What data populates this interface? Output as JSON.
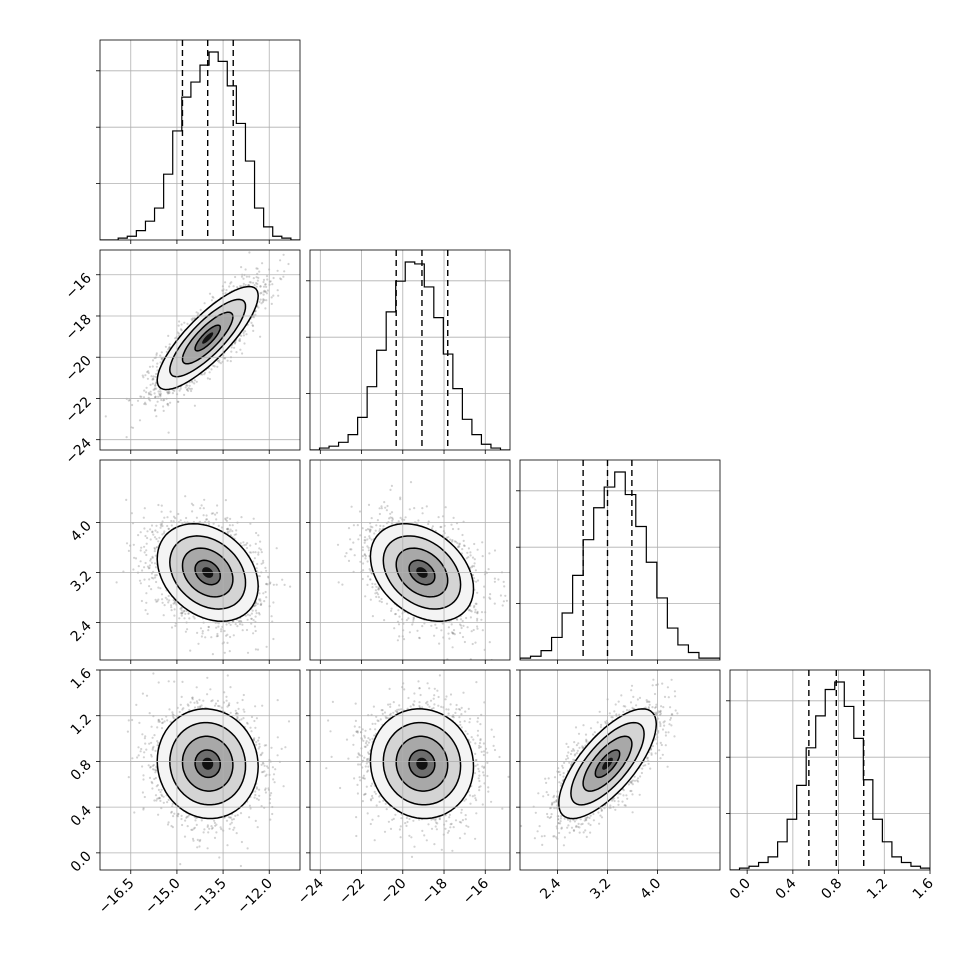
{
  "chart_data": {
    "type": "corner",
    "parameters": [
      {
        "range": [
          -17.5,
          -11.0
        ],
        "ticks": [
          -16.5,
          -15.0,
          -13.5,
          -12.0
        ],
        "tick_labels": [
          "−16.5",
          "−15.0",
          "−13.5",
          "−12.0"
        ],
        "quantiles": [
          -14.82,
          -14.0,
          -13.17
        ],
        "histogram": [
          0,
          0,
          1,
          2,
          5,
          10,
          17,
          35,
          58,
          76,
          84,
          93,
          100,
          95,
          82,
          62,
          42,
          17,
          7,
          2,
          1,
          0
        ]
      },
      {
        "range": [
          -24.5,
          -14.8
        ],
        "ticks": [
          -24,
          -22,
          -20,
          -18,
          -16
        ],
        "tick_labels": [
          "−24",
          "−22",
          "−20",
          "−18",
          "−16"
        ],
        "quantiles": [
          -20.32,
          -19.07,
          -17.82
        ],
        "histogram": [
          0,
          1,
          2,
          4,
          8,
          17,
          33,
          52,
          72,
          88,
          98,
          97,
          85,
          69,
          50,
          32,
          16,
          8,
          3,
          1,
          0
        ]
      },
      {
        "range": [
          1.8,
          5.0
        ],
        "ticks": [
          2.4,
          3.2,
          4.0
        ],
        "tick_labels": [
          "2.4",
          "3.2",
          "4.0"
        ],
        "quantiles": [
          2.81,
          3.2,
          3.59
        ],
        "histogram": [
          1,
          2,
          5,
          12,
          25,
          45,
          64,
          81,
          92,
          100,
          88,
          71,
          52,
          33,
          17,
          8,
          4,
          1,
          1
        ]
      },
      {
        "range": [
          -0.15,
          1.6
        ],
        "ticks": [
          0.0,
          0.4,
          0.8,
          1.2,
          1.6
        ],
        "tick_labels": [
          "0.0",
          "0.4",
          "0.8",
          "1.2",
          "1.6"
        ],
        "quantiles": [
          0.54,
          0.78,
          1.02
        ],
        "histogram": [
          0,
          1,
          2,
          4,
          7,
          15,
          27,
          45,
          65,
          82,
          96,
          100,
          87,
          70,
          48,
          27,
          15,
          7,
          4,
          2,
          1
        ]
      }
    ],
    "pairs": [
      {
        "row": 1,
        "col": 0,
        "mean": [
          -14.0,
          -19.07
        ],
        "sd": [
          0.82,
          1.25
        ],
        "corr": 0.82
      },
      {
        "row": 2,
        "col": 0,
        "mean": [
          -14.0,
          3.2
        ],
        "sd": [
          0.82,
          0.39
        ],
        "corr": -0.28
      },
      {
        "row": 2,
        "col": 1,
        "mean": [
          -19.07,
          3.2
        ],
        "sd": [
          1.25,
          0.39
        ],
        "corr": -0.33
      },
      {
        "row": 3,
        "col": 0,
        "mean": [
          -14.0,
          0.78
        ],
        "sd": [
          0.82,
          0.24
        ],
        "corr": -0.05
      },
      {
        "row": 3,
        "col": 1,
        "mean": [
          -19.07,
          0.78
        ],
        "sd": [
          1.25,
          0.24
        ],
        "corr": -0.05
      },
      {
        "row": 3,
        "col": 2,
        "mean": [
          3.2,
          0.78
        ],
        "sd": [
          0.39,
          0.24
        ],
        "corr": 0.72
      }
    ],
    "contour_levels_sigma": [
      0.5,
      1.0,
      1.5,
      2.0
    ],
    "grid": true
  }
}
